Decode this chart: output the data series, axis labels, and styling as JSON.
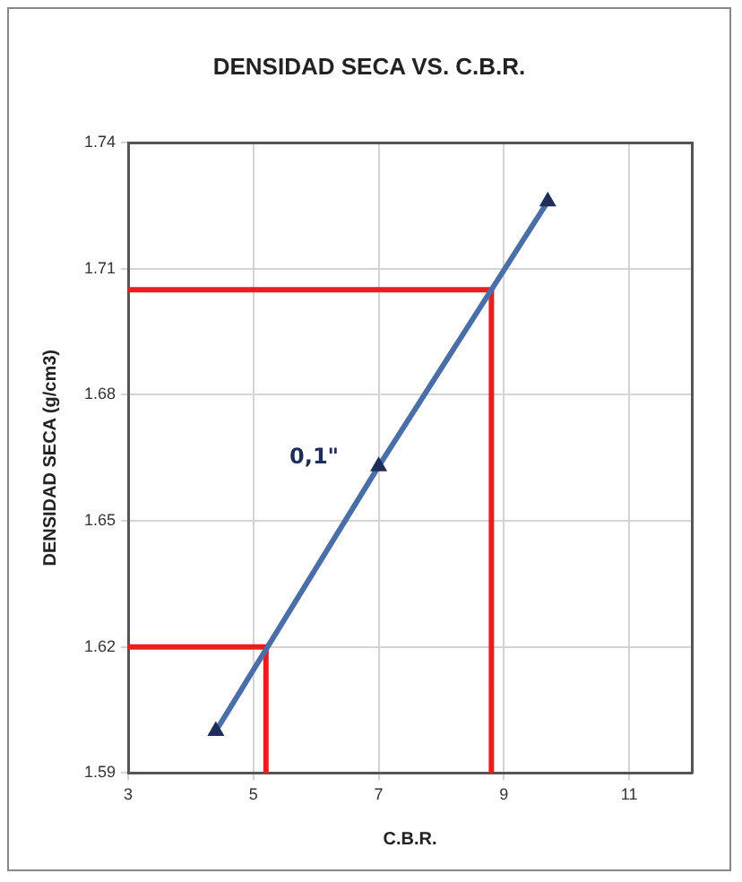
{
  "chart_data": {
    "type": "line",
    "title": "DENSIDAD SECA VS. C.B.R.",
    "xlabel": "C.B.R.",
    "ylabel": "DENSIDAD SECA (g/cm3)",
    "xlim": [
      3,
      12
    ],
    "xticks": [
      3,
      5,
      7,
      9,
      11
    ],
    "ylim": [
      1.59,
      1.74
    ],
    "yticks": [
      {
        "value": 1.59,
        "label": "1.59"
      },
      {
        "value": 1.62,
        "label": "1.62"
      },
      {
        "value": 1.65,
        "label": "1.65"
      },
      {
        "value": 1.68,
        "label": "1.68"
      },
      {
        "value": 1.71,
        "label": "1.71"
      },
      {
        "value": 1.74,
        "label": "1.74"
      }
    ],
    "grid": true,
    "legend": false,
    "series": [
      {
        "color": "#4a6fa8",
        "marker": "triangle",
        "x": [
          4.4,
          7.0,
          9.7
        ],
        "values": [
          1.6,
          1.663,
          1.726
        ]
      },
      {
        "color": "#ee1c1c",
        "marker": "none",
        "x": [
          3,
          5.2,
          5.2
        ],
        "values": [
          1.62,
          1.62,
          1.59
        ]
      },
      {
        "color": "#ee1c1c",
        "marker": "none",
        "x": [
          3,
          8.8,
          8.8
        ],
        "values": [
          1.705,
          1.705,
          1.59
        ]
      }
    ],
    "annotations": [
      "0,1\""
    ]
  }
}
